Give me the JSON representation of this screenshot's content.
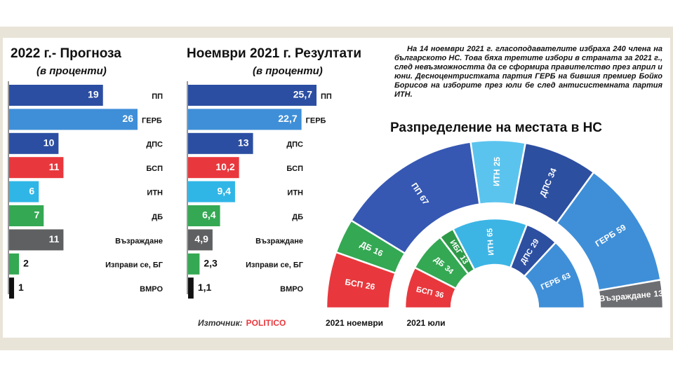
{
  "text": "На 14 ноември 2021 г. гласоподавателите избраха 240 члена на българското НС. Това бяха третите избори в страната за 2021 г., след невъзможността да се сформира правителство през април и юни. Десноцентристката партия ГЕРБ на бившия премиер Бойко Борисов на изборите през юли бе след антисистемната партия ИТН.",
  "source": {
    "label": "Източник:",
    "name": "POLITICO"
  },
  "chart_data": [
    {
      "type": "hbar",
      "title": "2022 г.- Прогноза",
      "subtitle": "(в проценти)",
      "categories": [
        "ПП",
        "ГЕРБ",
        "ДПС",
        "БСП",
        "ИТН",
        "ДБ",
        "Възраждане",
        "Изправи се, БГ",
        "ВМРО"
      ],
      "values": [
        19,
        26,
        10,
        11,
        6,
        7,
        11,
        2,
        1
      ],
      "colors": [
        "#2b4ea2",
        "#3f8fd8",
        "#2b4ea2",
        "#e8383d",
        "#2fb6e6",
        "#34a853",
        "#5f6062",
        "#34a853",
        "#111111"
      ]
    },
    {
      "type": "hbar",
      "title": "Ноември 2021 г. Резултати",
      "subtitle": "(в проценти)",
      "categories": [
        "ПП",
        "ГЕРБ",
        "ДПС",
        "БСП",
        "ИТН",
        "ДБ",
        "Възраждане",
        "Изправи се, БГ",
        "ВМРО"
      ],
      "values": [
        25.7,
        22.7,
        13,
        10.2,
        9.4,
        6.4,
        4.9,
        2.3,
        1.1
      ],
      "value_labels": [
        "25,7",
        "22,7",
        "13",
        "10,2",
        "9,4",
        "6,4",
        "4,9",
        "2,3",
        "1,1"
      ],
      "colors": [
        "#2b4ea2",
        "#3f8fd8",
        "#2b4ea2",
        "#e8383d",
        "#2fb6e6",
        "#34a853",
        "#5f6062",
        "#34a853",
        "#111111"
      ]
    },
    {
      "type": "semidonut",
      "title": "Разпределение на местата в НС",
      "rings": [
        {
          "name": "2021 ноември",
          "categories": [
            "БСП",
            "ДБ",
            "ПП",
            "ИТН",
            "ДПС",
            "ГЕРБ",
            "Възраждане"
          ],
          "values": [
            26,
            16,
            67,
            25,
            34,
            59,
            13
          ],
          "colors": [
            "#e8383d",
            "#34a853",
            "#3658b3",
            "#5bc4ee",
            "#2d4fa0",
            "#3f8fd8",
            "#6d6e71"
          ]
        },
        {
          "name": "2021 юли",
          "categories": [
            "БСП",
            "ДБ",
            "ИБГ",
            "ИТН",
            "ДПС",
            "ГЕРБ"
          ],
          "values": [
            36,
            34,
            13,
            65,
            29,
            63
          ],
          "colors": [
            "#e8383d",
            "#34a853",
            "#2e9a48",
            "#3cb5e5",
            "#2d4fa0",
            "#3f8fd8"
          ]
        }
      ]
    }
  ]
}
